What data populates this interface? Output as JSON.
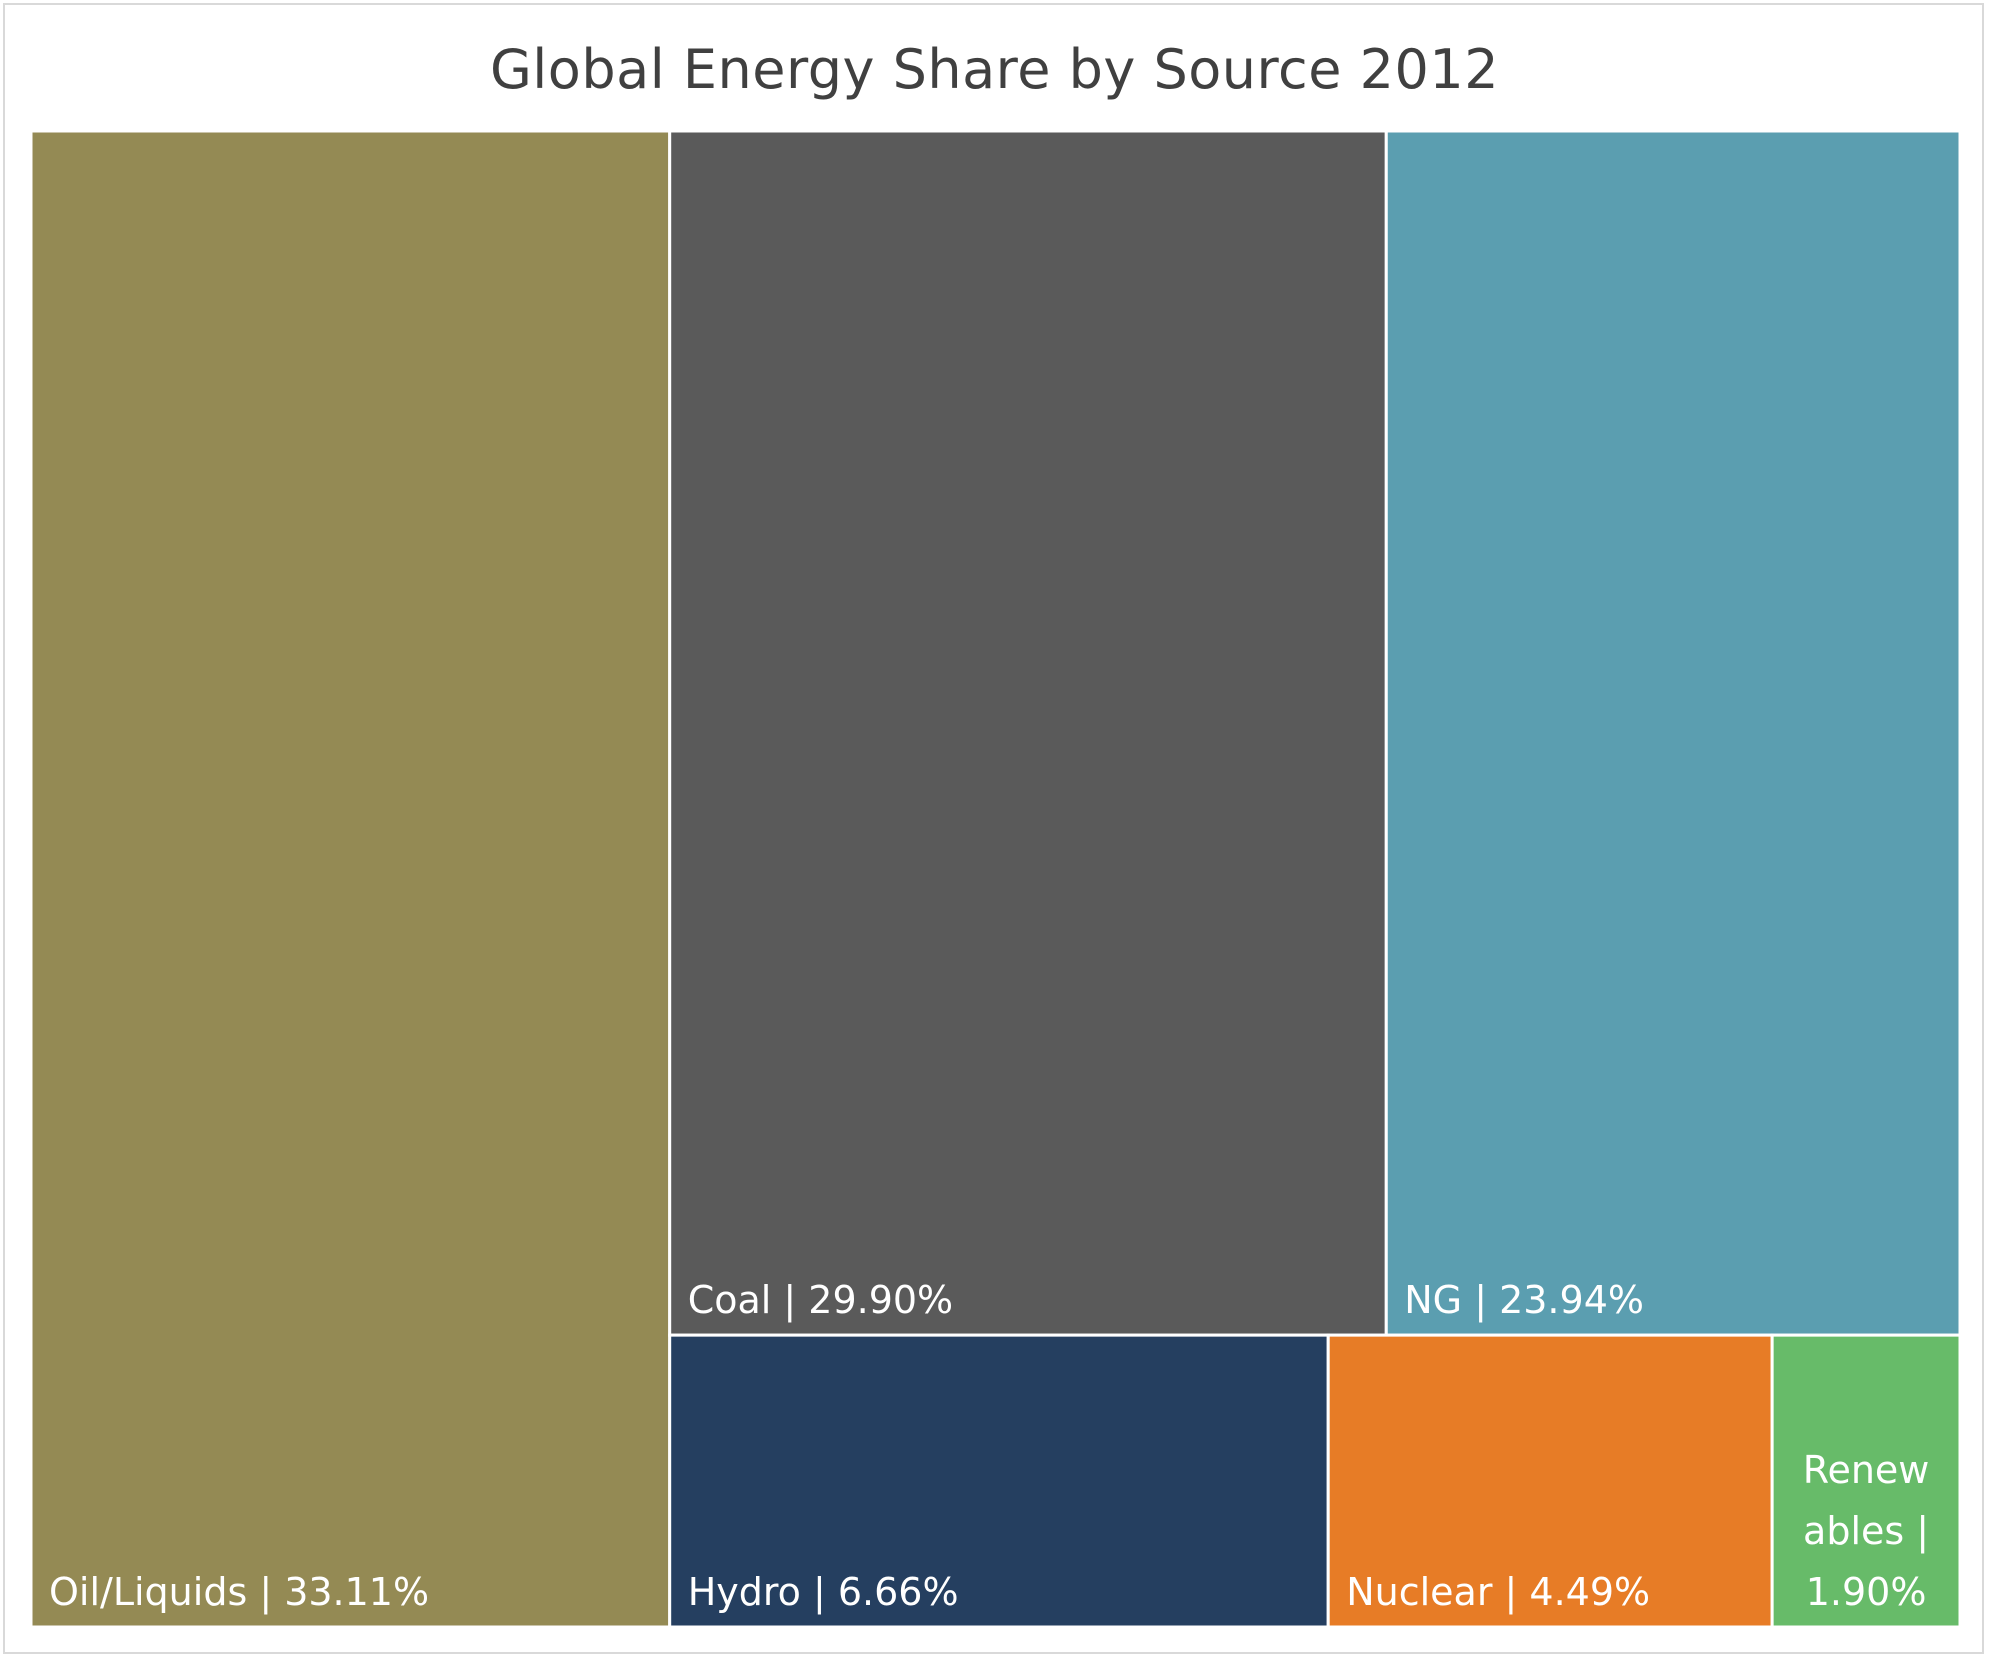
{
  "chart_data": {
    "type": "treemap",
    "title": "Global Energy Share by Source 2012",
    "items": [
      {
        "name": "Oil/Liquids",
        "value_label": "33.11%",
        "value": 33.11,
        "color": "#948a54"
      },
      {
        "name": "Coal",
        "value_label": "29.90%",
        "value": 29.9,
        "color": "#5a5a5a"
      },
      {
        "name": "NG",
        "value_label": "23.94%",
        "value": 23.94,
        "color": "#5b9eb0"
      },
      {
        "name": "Hydro",
        "value_label": "6.66%",
        "value": 6.66,
        "color": "#253f60"
      },
      {
        "name": "Nuclear",
        "value_label": "4.49%",
        "value": 4.49,
        "color": "#e77c26"
      },
      {
        "name": "Renewables",
        "value_label": "1.90%",
        "value": 1.9,
        "color": "#67bb69",
        "display_lines": [
          "Renew",
          "ables |",
          "1.90%"
        ]
      }
    ],
    "label_color": "#ffffff",
    "border_color": "#ffffff"
  }
}
